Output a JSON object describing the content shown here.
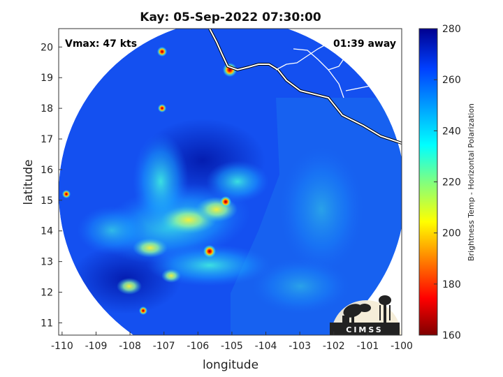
{
  "title": "Kay: 05-Sep-2022 07:30:00",
  "annotations": {
    "vmax": "Vmax: 47 kts",
    "time_away": "01:39 away"
  },
  "axes": {
    "xlabel": "longitude",
    "ylabel": "latitude",
    "xticks": [
      -110,
      -109,
      -108,
      -107,
      -106,
      -105,
      -104,
      -103,
      -102,
      -101,
      -100
    ],
    "yticks": [
      11,
      12,
      13,
      14,
      15,
      16,
      17,
      18,
      19,
      20
    ],
    "xlim": [
      -110.1,
      -100
    ],
    "ylim": [
      10.6,
      20.6
    ]
  },
  "colorbar": {
    "label": "Brightness Temp - Horizontal Polarization",
    "ticks": [
      160,
      180,
      200,
      220,
      240,
      260,
      280
    ],
    "range": [
      160,
      280
    ],
    "colors": [
      "#7f0000",
      "#ff0000",
      "#ffff00",
      "#00ffff",
      "#0000ff",
      "#00008f"
    ]
  },
  "logo": {
    "text": "CIMSS"
  }
}
